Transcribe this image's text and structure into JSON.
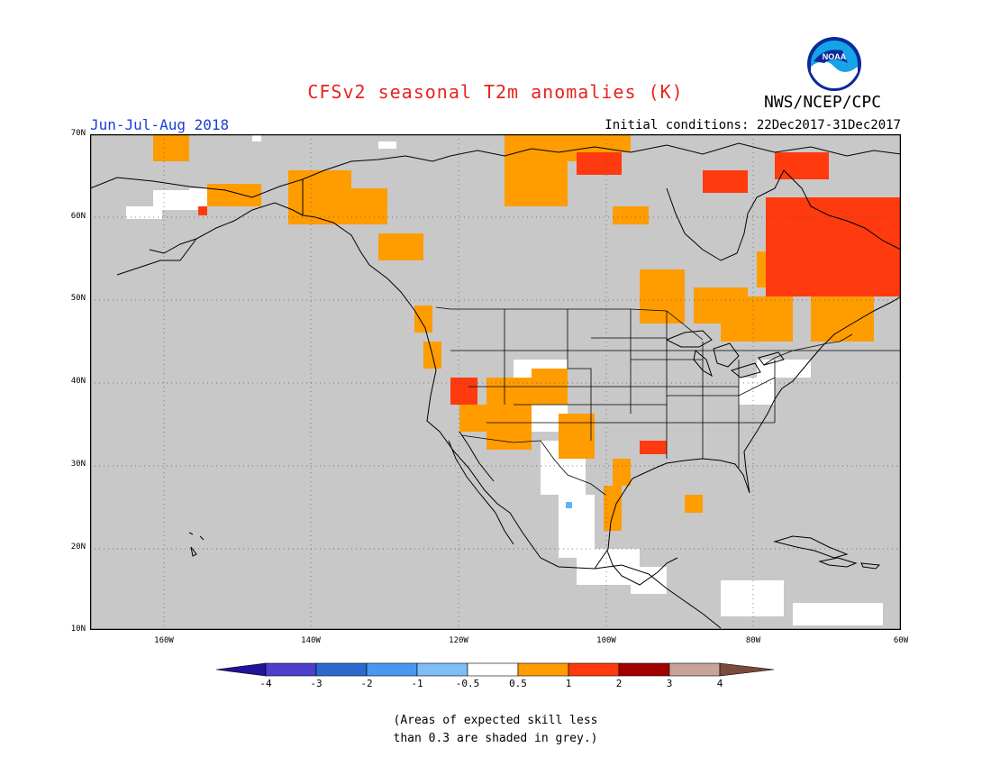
{
  "title": "CFSv2 seasonal T2m anomalies (K)",
  "period": "Jun-Jul-Aug 2018",
  "initial_conditions": "Initial conditions: 22Dec2017-31Dec2017",
  "agency": "NWS/NCEP/CPC",
  "logo_text": "NOAA",
  "map": {
    "lat_labels": [
      "70N",
      "60N",
      "50N",
      "40N",
      "30N",
      "20N",
      "10N"
    ],
    "lon_labels": [
      "160W",
      "140W",
      "120W",
      "100W",
      "80W",
      "60W"
    ],
    "background_color": "#c8c8c8",
    "grid": "dotted"
  },
  "colorbar": {
    "labels": [
      "-4",
      "-3",
      "-2",
      "-1",
      "-0.5",
      "0.5",
      "1",
      "2",
      "3",
      "4"
    ],
    "colors": [
      "#23129a",
      "#4b3fcc",
      "#2b6bd0",
      "#4a97f0",
      "#7fbdf5",
      "#ffffff",
      "#ff9c00",
      "#ff3a0e",
      "#a10000",
      "#c8a39a",
      "#7a4b3c"
    ]
  },
  "note_line1": "(Areas of expected skill less",
  "note_line2": "than 0.3 are shaded in grey.)",
  "anomaly_colors": {
    "white": "#ffffff",
    "orange": "#ff9c00",
    "red": "#ff3a0e",
    "lightblue": "#66b2f0"
  }
}
